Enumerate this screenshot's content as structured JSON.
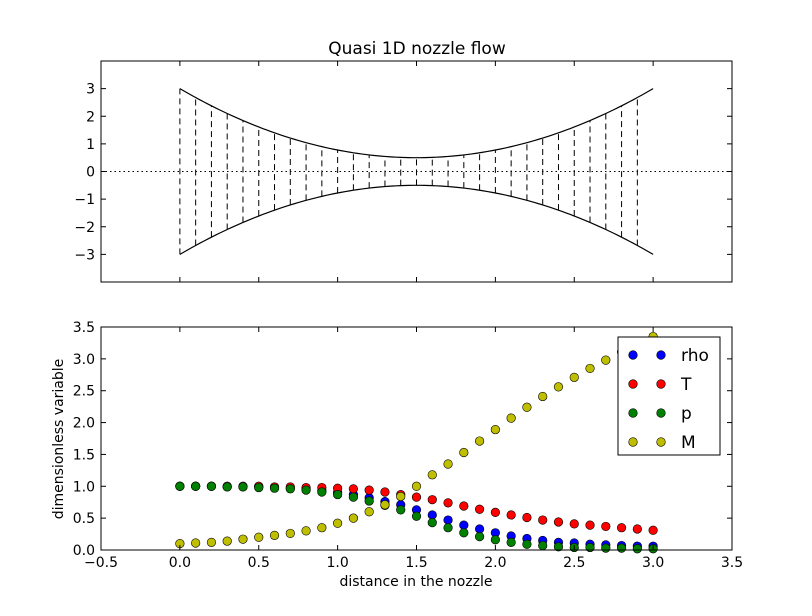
{
  "chart_data": [
    {
      "type": "line",
      "title": "Quasi 1D nozzle flow",
      "xlabel": "",
      "ylabel": "",
      "xlim": [
        -0.5,
        3.5
      ],
      "ylim": [
        4,
        -4
      ],
      "yticks": [
        -3,
        -2,
        -1,
        0,
        1,
        2,
        3
      ],
      "ytick_labels": [
        "−3",
        "−2",
        "−1",
        "0",
        "1",
        "2",
        "3"
      ],
      "show_xtick_labels": false,
      "grid": false,
      "wall": {
        "x_start": 0.0,
        "x_end": 3.0,
        "throat_x": 1.5,
        "throat_half_height": 0.5,
        "inlet_half_height": 3.0,
        "shape": "half_height = 0.5 + 2.5 * ((x - 1.5) / 1.5)^2",
        "style": "solid"
      },
      "centerline": {
        "y": 0,
        "style": "dotted"
      },
      "grid_stations": {
        "x": [
          0.0,
          0.1,
          0.2,
          0.3,
          0.4,
          0.5,
          0.6,
          0.7,
          0.8,
          0.9,
          1.0,
          1.1,
          1.2,
          1.3,
          1.4,
          1.5,
          1.6,
          1.7,
          1.8,
          1.9,
          2.0,
          2.1,
          2.2,
          2.3,
          2.4,
          2.5,
          2.6,
          2.7,
          2.8,
          2.9
        ],
        "style": "dashed"
      }
    },
    {
      "type": "scatter",
      "title": "",
      "xlabel": "distance in the nozzle",
      "ylabel": "dimensionless variable",
      "xlim": [
        -0.5,
        3.5
      ],
      "ylim": [
        0,
        3.5
      ],
      "xticks": [
        -0.5,
        0.0,
        0.5,
        1.0,
        1.5,
        2.0,
        2.5,
        3.0,
        3.5
      ],
      "xtick_labels": [
        "−0.5",
        "0.0",
        "0.5",
        "1.0",
        "1.5",
        "2.0",
        "2.5",
        "3.0",
        "3.5"
      ],
      "yticks": [
        0,
        0.5,
        1.0,
        1.5,
        2.0,
        2.5,
        3.0,
        3.5
      ],
      "ytick_labels": [
        "0.0",
        "0.5",
        "1.0",
        "1.5",
        "2.0",
        "2.5",
        "3.0",
        "3.5"
      ],
      "legend_position": "top-right",
      "grid": false,
      "x": [
        0.0,
        0.1,
        0.2,
        0.3,
        0.4,
        0.5,
        0.6,
        0.7,
        0.8,
        0.9,
        1.0,
        1.1,
        1.2,
        1.3,
        1.4,
        1.5,
        1.6,
        1.7,
        1.8,
        1.9,
        2.0,
        2.1,
        2.2,
        2.3,
        2.4,
        2.5,
        2.6,
        2.7,
        2.8,
        2.9,
        3.0
      ],
      "series": [
        {
          "name": "rho",
          "color": "#0000ff",
          "values": [
            1.0,
            1.0,
            1.0,
            0.99,
            0.99,
            0.99,
            0.98,
            0.97,
            0.96,
            0.93,
            0.9,
            0.87,
            0.82,
            0.76,
            0.71,
            0.63,
            0.55,
            0.47,
            0.39,
            0.33,
            0.27,
            0.22,
            0.18,
            0.15,
            0.12,
            0.11,
            0.09,
            0.08,
            0.07,
            0.06,
            0.06
          ]
        },
        {
          "name": "T",
          "color": "#ff0000",
          "values": [
            1.0,
            1.0,
            1.0,
            1.0,
            1.0,
            1.0,
            0.99,
            0.99,
            0.98,
            0.98,
            0.97,
            0.96,
            0.94,
            0.91,
            0.87,
            0.83,
            0.79,
            0.74,
            0.69,
            0.64,
            0.59,
            0.55,
            0.51,
            0.47,
            0.44,
            0.41,
            0.39,
            0.37,
            0.35,
            0.33,
            0.31
          ]
        },
        {
          "name": "p",
          "color": "#008000",
          "values": [
            1.0,
            1.0,
            1.0,
            0.99,
            0.99,
            0.98,
            0.97,
            0.96,
            0.94,
            0.91,
            0.87,
            0.83,
            0.77,
            0.7,
            0.63,
            0.53,
            0.43,
            0.35,
            0.27,
            0.21,
            0.16,
            0.12,
            0.09,
            0.07,
            0.05,
            0.04,
            0.04,
            0.03,
            0.03,
            0.02,
            0.02
          ]
        },
        {
          "name": "M",
          "color": "#bfbf00",
          "values": [
            0.1,
            0.11,
            0.12,
            0.14,
            0.17,
            0.2,
            0.23,
            0.26,
            0.3,
            0.35,
            0.42,
            0.5,
            0.6,
            0.71,
            0.84,
            1.0,
            1.18,
            1.35,
            1.53,
            1.71,
            1.89,
            2.07,
            2.24,
            2.41,
            2.56,
            2.71,
            2.85,
            2.98,
            3.11,
            3.23,
            3.35
          ]
        }
      ]
    }
  ]
}
